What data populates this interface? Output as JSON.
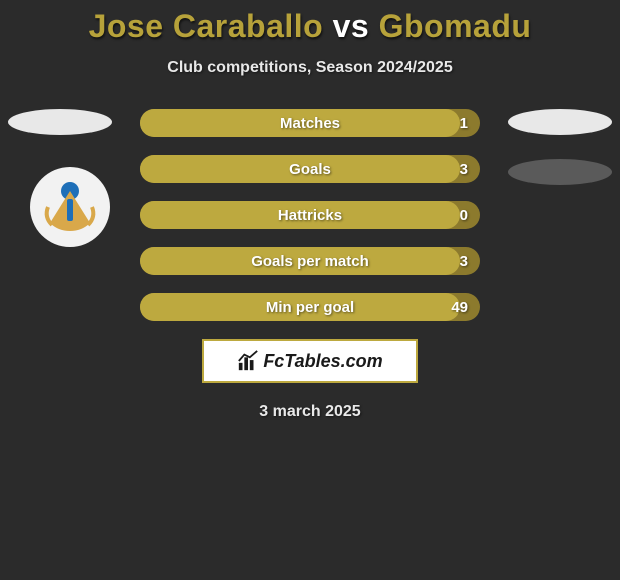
{
  "colors": {
    "background": "#2b2b2b",
    "title_accent": "#b7a23a",
    "title_vs": "#ffffff",
    "subtitle": "#e8e8e8",
    "bar_track": "#8c7a2d",
    "bar_fill": "#bda93f",
    "bar_text": "#ffffff",
    "oval_light": "#e8e8e8",
    "oval_dark": "#5a5a5a",
    "logo_border": "#bda93f",
    "logo_text": "#1a1a1a",
    "logo_bg": "#ffffff",
    "badge_bg": "#f2f2f2",
    "badge_wing": "#d9a84a",
    "badge_center": "#1e6fb8"
  },
  "title": {
    "player1": "Jose Caraballo",
    "vs": "vs",
    "player2": "Gbomadu"
  },
  "subtitle": "Club competitions, Season 2024/2025",
  "bars": [
    {
      "label": "Matches",
      "value": "1",
      "fill_pct": 94
    },
    {
      "label": "Goals",
      "value": "3",
      "fill_pct": 94
    },
    {
      "label": "Hattricks",
      "value": "0",
      "fill_pct": 94
    },
    {
      "label": "Goals per match",
      "value": "3",
      "fill_pct": 94
    },
    {
      "label": "Min per goal",
      "value": "49",
      "fill_pct": 94
    }
  ],
  "logo": {
    "text": "FcTables.com"
  },
  "date": "3 march 2025"
}
